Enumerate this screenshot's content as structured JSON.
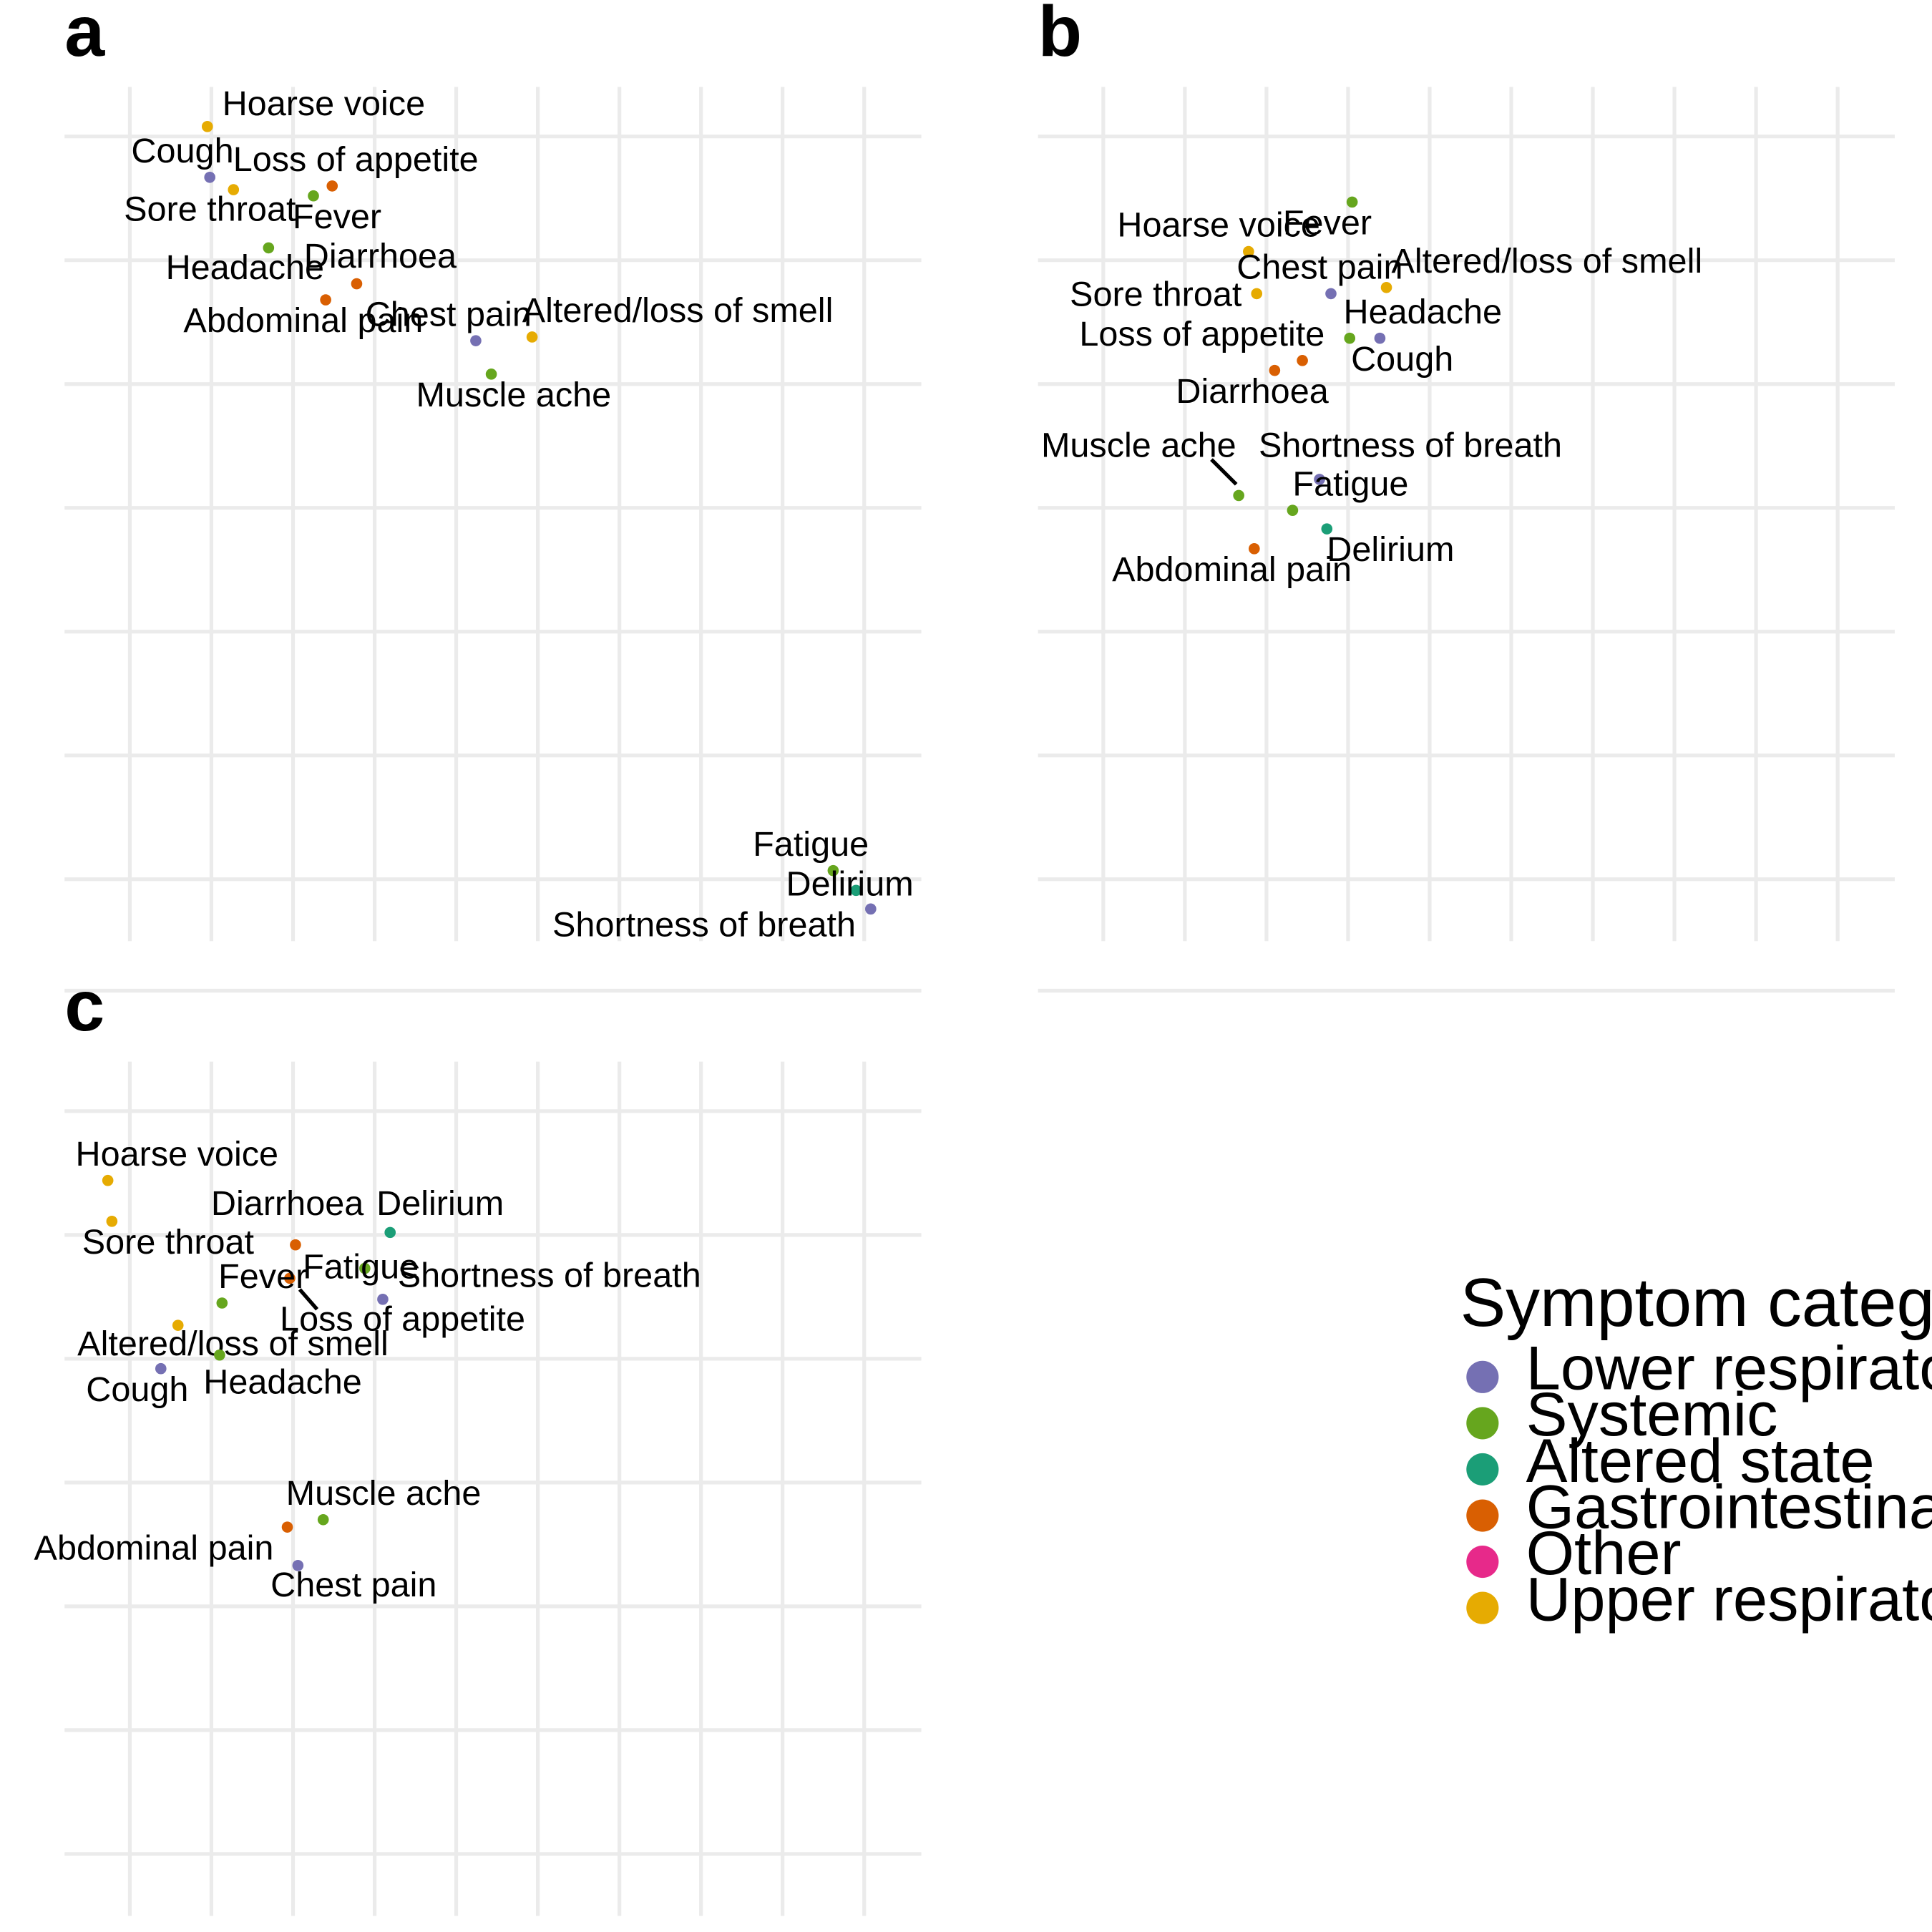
{
  "legend": {
    "title": "Symptom category",
    "items": [
      {
        "label": "Lower respiratory tract",
        "color": "#7570b3"
      },
      {
        "label": "Systemic",
        "color": "#66a61e"
      },
      {
        "label": "Altered state",
        "color": "#1b9e77"
      },
      {
        "label": "Gastrointestinal",
        "color": "#d95f02"
      },
      {
        "label": "Other",
        "color": "#e7298a"
      },
      {
        "label": "Upper respiratory tract",
        "color": "#e6ab02"
      }
    ]
  },
  "chart_data": [
    {
      "type": "scatter",
      "panel": "a",
      "title": "",
      "xlabel": "",
      "ylabel": "",
      "grid": true,
      "xlim": [
        -0.8,
        9.7
      ],
      "ylim": [
        -6.5,
        0.4
      ],
      "points": [
        {
          "label": "Hoarse voice",
          "category": "Upper respiratory tract",
          "x": 0.95,
          "y": 0.08
        },
        {
          "label": "Cough",
          "category": "Lower respiratory tract",
          "x": 0.98,
          "y": -0.33
        },
        {
          "label": "Sore throat",
          "category": "Upper respiratory tract",
          "x": 1.27,
          "y": -0.43
        },
        {
          "label": "Loss of appetite",
          "category": "Gastrointestinal",
          "x": 2.48,
          "y": -0.4
        },
        {
          "label": "Fever",
          "category": "Systemic",
          "x": 2.25,
          "y": -0.48
        },
        {
          "label": "Headache",
          "category": "Systemic",
          "x": 1.7,
          "y": -0.9
        },
        {
          "label": "Diarrhoea",
          "category": "Gastrointestinal",
          "x": 2.78,
          "y": -1.19
        },
        {
          "label": "Abdominal pain",
          "category": "Gastrointestinal",
          "x": 2.4,
          "y": -1.32
        },
        {
          "label": "Chest pain",
          "category": "Lower respiratory tract",
          "x": 4.24,
          "y": -1.65
        },
        {
          "label": "Altered/loss of smell",
          "category": "Upper respiratory tract",
          "x": 4.93,
          "y": -1.62
        },
        {
          "label": "Muscle ache",
          "category": "Systemic",
          "x": 4.43,
          "y": -1.92
        },
        {
          "label": "Fatigue",
          "category": "Systemic",
          "x": 8.62,
          "y": -5.93
        },
        {
          "label": "Delirium",
          "category": "Altered state",
          "x": 8.9,
          "y": -6.09
        },
        {
          "label": "Shortness of breath",
          "category": "Lower respiratory tract",
          "x": 9.08,
          "y": -6.24
        }
      ]
    },
    {
      "type": "scatter",
      "panel": "b",
      "title": "",
      "xlabel": "",
      "ylabel": "",
      "grid": true,
      "xlim": [
        -0.8,
        9.7
      ],
      "ylim": [
        -6.5,
        0.4
      ],
      "points": [
        {
          "label": "Fever",
          "category": "Systemic",
          "x": 3.05,
          "y": -0.53
        },
        {
          "label": "Hoarse voice",
          "category": "Upper respiratory tract",
          "x": 1.78,
          "y": -0.93
        },
        {
          "label": "Chest pain",
          "category": "Lower respiratory tract",
          "x": 2.79,
          "y": -1.27
        },
        {
          "label": "Sore throat",
          "category": "Upper respiratory tract",
          "x": 1.88,
          "y": -1.27
        },
        {
          "label": "Altered/loss of smell",
          "category": "Upper respiratory tract",
          "x": 3.47,
          "y": -1.22
        },
        {
          "label": "Headache",
          "category": "Systemic",
          "x": 3.02,
          "y": -1.63
        },
        {
          "label": "Cough",
          "category": "Lower respiratory tract",
          "x": 3.39,
          "y": -1.63
        },
        {
          "label": "Loss of appetite",
          "category": "Gastrointestinal",
          "x": 2.44,
          "y": -1.81
        },
        {
          "label": "Diarrhoea",
          "category": "Gastrointestinal",
          "x": 2.1,
          "y": -1.89
        },
        {
          "label": "Shortness of breath",
          "category": "Lower respiratory tract",
          "x": 2.65,
          "y": -2.77
        },
        {
          "label": "Muscle ache",
          "category": "Systemic",
          "x": 1.66,
          "y": -2.9
        },
        {
          "label": "Fatigue",
          "category": "Systemic",
          "x": 2.32,
          "y": -3.02
        },
        {
          "label": "Delirium",
          "category": "Altered state",
          "x": 2.74,
          "y": -3.17
        },
        {
          "label": "Abdominal pain",
          "category": "Gastrointestinal",
          "x": 1.85,
          "y": -3.33
        }
      ]
    },
    {
      "type": "scatter",
      "panel": "c",
      "title": "",
      "xlabel": "",
      "ylabel": "",
      "grid": true,
      "xlim": [
        -0.8,
        9.7
      ],
      "ylim": [
        -6.5,
        0.4
      ],
      "points": [
        {
          "label": "Hoarse voice",
          "category": "Upper respiratory tract",
          "x": -0.27,
          "y": -0.56
        },
        {
          "label": "Sore throat",
          "category": "Upper respiratory tract",
          "x": -0.22,
          "y": -0.89
        },
        {
          "label": "Diarrhoea",
          "category": "Gastrointestinal",
          "x": 2.03,
          "y": -1.08
        },
        {
          "label": "Delirium",
          "category": "Altered state",
          "x": 3.19,
          "y": -0.98
        },
        {
          "label": "Fatigue",
          "category": "Systemic",
          "x": 2.88,
          "y": -1.27
        },
        {
          "label": "Loss of appetite",
          "category": "Gastrointestinal",
          "x": 1.96,
          "y": -1.35
        },
        {
          "label": "Shortness of breath",
          "category": "Lower respiratory tract",
          "x": 3.1,
          "y": -1.52
        },
        {
          "label": "Fever",
          "category": "Systemic",
          "x": 1.13,
          "y": -1.55
        },
        {
          "label": "Altered/loss of smell",
          "category": "Upper respiratory tract",
          "x": 0.59,
          "y": -1.73
        },
        {
          "label": "Headache",
          "category": "Systemic",
          "x": 1.1,
          "y": -1.97
        },
        {
          "label": "Cough",
          "category": "Lower respiratory tract",
          "x": 0.38,
          "y": -2.08
        },
        {
          "label": "Muscle ache",
          "category": "Systemic",
          "x": 2.37,
          "y": -3.3
        },
        {
          "label": "Abdominal pain",
          "category": "Gastrointestinal",
          "x": 1.93,
          "y": -3.36
        },
        {
          "label": "Chest pain",
          "category": "Lower respiratory tract",
          "x": 2.06,
          "y": -3.67
        }
      ]
    }
  ]
}
